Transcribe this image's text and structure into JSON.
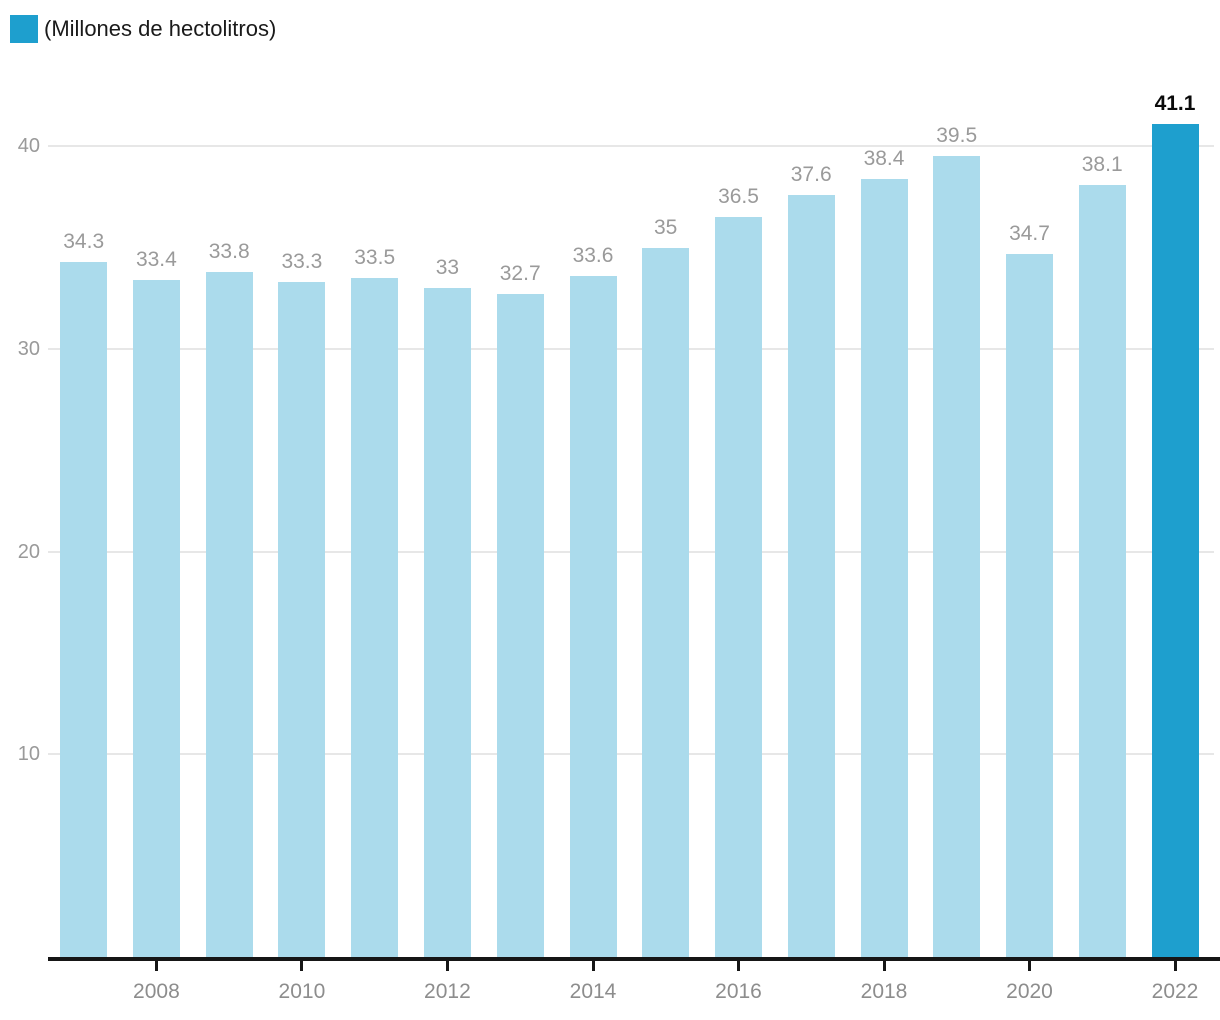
{
  "legend": {
    "label": "(Millones de hectolitros)"
  },
  "chart_data": {
    "type": "bar",
    "categories": [
      2007,
      2008,
      2009,
      2010,
      2011,
      2012,
      2013,
      2014,
      2015,
      2016,
      2017,
      2018,
      2019,
      2020,
      2021,
      2022
    ],
    "values": [
      34.3,
      33.4,
      33.8,
      33.3,
      33.5,
      33,
      32.7,
      33.6,
      35,
      36.5,
      37.6,
      38.4,
      39.5,
      34.7,
      38.1,
      41.1
    ],
    "value_labels": [
      "34.3",
      "33.4",
      "33.8",
      "33.3",
      "33.5",
      "33",
      "32.7",
      "33.6",
      "35",
      "36.5",
      "37.6",
      "38.4",
      "39.5",
      "34.7",
      "38.1",
      "41.1"
    ],
    "title": "",
    "xlabel": "",
    "ylabel": "(Millones de hectolitros)",
    "x_tick_labels": [
      "2008",
      "2010",
      "2012",
      "2014",
      "2016",
      "2018",
      "2020",
      "2022"
    ],
    "y_ticks": [
      10,
      20,
      30,
      40
    ],
    "ylim": [
      0,
      42
    ],
    "grid": true,
    "legend_position": "top-left",
    "bar_color": "#abdbec",
    "highlight_color": "#1e9fce",
    "highlight_index": 15,
    "value_label_color": "#9a9a9a",
    "highlight_label_color": "#0a0a0a",
    "axis_color": "#161616",
    "grid_color": "#e7e7e7"
  }
}
